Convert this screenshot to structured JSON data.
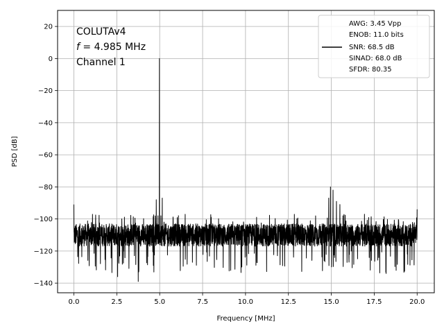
{
  "chart_data": {
    "type": "line",
    "xlabel": "Frequency [MHz]",
    "ylabel": "PSD [dB]",
    "xlim": [
      -0.95,
      21.0
    ],
    "ylim": [
      -146,
      30
    ],
    "xticks": [
      0.0,
      2.5,
      5.0,
      7.5,
      10.0,
      12.5,
      15.0,
      17.5,
      20.0
    ],
    "xtick_labels": [
      "0.0",
      "2.5",
      "5.0",
      "7.5",
      "10.0",
      "12.5",
      "15.0",
      "17.5",
      "20.0"
    ],
    "yticks": [
      20,
      0,
      -20,
      -40,
      -60,
      -80,
      -100,
      -120,
      -140
    ],
    "ytick_labels": [
      "20",
      "0",
      "−20",
      "−40",
      "−60",
      "−80",
      "−100",
      "−120",
      "−140"
    ],
    "grid": true,
    "annotation": {
      "line1": "COLUTAv4",
      "line2_var": "f",
      "line2_rest": " = 4.985 MHz",
      "line3": "Channel 1"
    },
    "legend": {
      "placement": "top-right",
      "entries": [
        "AWG: 3.45 Vpp",
        "ENOB: 11.0 bits",
        "SNR: 68.5 dB",
        "SINAD: 68.0 dB",
        "SFDR: 80.35"
      ]
    },
    "series": [
      {
        "color": "#000000",
        "noise_floor_db": -110,
        "noise_floor_range_db": [
          -140,
          -95
        ],
        "x_range": [
          0.0,
          20.0
        ],
        "spikes": [
          {
            "x": 0.0,
            "y": -91
          },
          {
            "x": 4.985,
            "y": 0
          },
          {
            "x": 4.9,
            "y": -98
          },
          {
            "x": 5.07,
            "y": -98
          },
          {
            "x": 4.8,
            "y": -88
          },
          {
            "x": 5.15,
            "y": -87
          },
          {
            "x": 14.95,
            "y": -80
          },
          {
            "x": 15.1,
            "y": -82
          },
          {
            "x": 14.85,
            "y": -87
          },
          {
            "x": 15.3,
            "y": -89
          },
          {
            "x": 15.5,
            "y": -91
          },
          {
            "x": 20.0,
            "y": -94
          },
          {
            "x": 3.75,
            "y": -139
          },
          {
            "x": 2.55,
            "y": -136
          }
        ]
      }
    ]
  }
}
